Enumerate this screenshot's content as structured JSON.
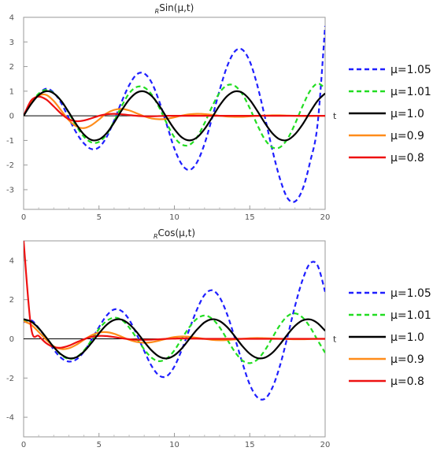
{
  "chart_data": [
    {
      "type": "line",
      "title_sub": "R",
      "title_main": "Sin(μ,t)",
      "xlabel": "t",
      "ylabel": "",
      "xlim": [
        0,
        20
      ],
      "ylim": [
        -3.8,
        4
      ],
      "x_ticks": [
        0,
        5,
        10,
        15,
        20
      ],
      "y_ticks": [
        -3,
        -2,
        -1,
        0,
        1,
        2,
        3,
        4
      ],
      "legend_position": "right",
      "x": [
        0,
        0.5,
        1,
        1.5,
        2,
        2.5,
        3,
        3.5,
        4,
        4.5,
        5,
        5.5,
        6,
        6.5,
        7,
        7.5,
        8,
        8.5,
        9,
        9.5,
        10,
        10.5,
        11,
        11.5,
        12,
        12.5,
        13,
        13.5,
        14,
        14.5,
        15,
        15.5,
        16,
        16.5,
        17,
        17.5,
        18,
        18.5,
        19,
        19.5,
        20
      ],
      "series": [
        {
          "name": "μ=1.05",
          "color": "#1f1fff",
          "dashed": true,
          "values": [
            0,
            0.5,
            0.88,
            1.1,
            0.94,
            0.51,
            -0.1,
            -0.69,
            -1.12,
            -1.35,
            -1.28,
            -0.87,
            -0.2,
            0.57,
            1.24,
            1.68,
            1.72,
            1.34,
            0.58,
            -0.37,
            -1.33,
            -1.98,
            -2.2,
            -1.89,
            -1.14,
            -0.09,
            1.04,
            2.01,
            2.61,
            2.69,
            2.21,
            1.24,
            -0.04,
            -1.39,
            -2.55,
            -3.34,
            -3.48,
            -2.99,
            -1.88,
            -0.33,
            3.65
          ]
        },
        {
          "name": "μ=1.01",
          "color": "#22dd22",
          "dashed": true,
          "values": [
            0,
            0.52,
            0.9,
            1.05,
            0.92,
            0.6,
            0.12,
            -0.42,
            -0.85,
            -1.08,
            -1.06,
            -0.76,
            -0.22,
            0.39,
            0.91,
            1.17,
            1.15,
            0.86,
            0.33,
            -0.31,
            -0.87,
            -1.17,
            -1.18,
            -0.87,
            -0.3,
            0.37,
            0.94,
            1.24,
            1.22,
            0.89,
            0.31,
            -0.37,
            -0.96,
            -1.28,
            -1.28,
            -0.94,
            -0.33,
            0.39,
            1.01,
            1.31,
            1.12
          ]
        },
        {
          "name": "μ=1.0",
          "color": "#000000",
          "dashed": false,
          "values": [
            0,
            0.48,
            0.84,
            1.0,
            0.91,
            0.6,
            0.14,
            -0.35,
            -0.76,
            -0.98,
            -0.96,
            -0.71,
            -0.28,
            0.22,
            0.66,
            0.94,
            0.99,
            0.8,
            0.41,
            -0.08,
            -0.54,
            -0.88,
            -1.0,
            -0.88,
            -0.54,
            -0.07,
            0.42,
            0.8,
            0.99,
            0.94,
            0.65,
            0.2,
            -0.29,
            -0.71,
            -0.96,
            -0.98,
            -0.75,
            -0.35,
            0.15,
            0.61,
            0.91
          ]
        },
        {
          "name": "μ=0.9",
          "color": "#ff8c1a",
          "dashed": false,
          "values": [
            0,
            0.55,
            0.82,
            0.85,
            0.6,
            0.21,
            -0.18,
            -0.43,
            -0.5,
            -0.38,
            -0.15,
            0.1,
            0.24,
            0.28,
            0.22,
            0.1,
            -0.02,
            -0.11,
            -0.14,
            -0.12,
            -0.06,
            0.01,
            0.06,
            0.08,
            0.07,
            0.04,
            0.0,
            -0.03,
            -0.04,
            -0.04,
            -0.02,
            0.0,
            0.01,
            0.02,
            0.02,
            0.01,
            0.0,
            -0.01,
            -0.01,
            0.0,
            0.0
          ]
        },
        {
          "name": "μ=0.8",
          "color": "#ee1111",
          "dashed": false,
          "values": [
            0,
            0.62,
            0.78,
            0.66,
            0.38,
            0.08,
            -0.14,
            -0.22,
            -0.19,
            -0.1,
            0.0,
            0.06,
            0.08,
            0.06,
            0.03,
            0.0,
            -0.02,
            -0.02,
            -0.01,
            0.0,
            0.0,
            0.0,
            0.0,
            0.0,
            0.0,
            0.0,
            0.0,
            0.0,
            0.0,
            0.0,
            0.0,
            0.0,
            0.0,
            0.0,
            0.0,
            0.0,
            0.0,
            0.0,
            0.0,
            0.0,
            0.0
          ]
        }
      ]
    },
    {
      "type": "line",
      "title_sub": "R",
      "title_main": "Cos(μ,t)",
      "xlabel": "t",
      "ylabel": "",
      "xlim": [
        0,
        20
      ],
      "ylim": [
        -5,
        5
      ],
      "x_ticks": [
        0,
        5,
        10,
        15,
        20
      ],
      "y_ticks": [
        -4,
        -2,
        0,
        2,
        4
      ],
      "legend_position": "right",
      "x": [
        0,
        0.5,
        1,
        1.5,
        2,
        2.5,
        3,
        3.5,
        4,
        4.5,
        5,
        5.5,
        6,
        6.5,
        7,
        7.5,
        8,
        8.5,
        9,
        9.5,
        10,
        10.5,
        11,
        11.5,
        12,
        12.5,
        13,
        13.5,
        14,
        14.5,
        15,
        15.5,
        16,
        16.5,
        17,
        17.5,
        18,
        18.5,
        19,
        19.5,
        20
      ],
      "series": [
        {
          "name": "μ=1.05",
          "color": "#1f1fff",
          "dashed": true,
          "values": [
            0.85,
            0.95,
            0.55,
            0.02,
            -0.55,
            -0.98,
            -1.16,
            -1.05,
            -0.66,
            -0.05,
            0.6,
            1.18,
            1.5,
            1.42,
            0.98,
            0.23,
            -0.62,
            -1.4,
            -1.88,
            -1.9,
            -1.41,
            -0.54,
            0.5,
            1.5,
            2.24,
            2.48,
            2.12,
            1.25,
            0.07,
            -1.2,
            -2.33,
            -2.98,
            -3.06,
            -2.49,
            -1.38,
            0.1,
            1.67,
            3.0,
            3.85,
            3.74,
            2.4
          ]
        },
        {
          "name": "μ=1.01",
          "color": "#22dd22",
          "dashed": true,
          "values": [
            0.95,
            0.88,
            0.52,
            0.07,
            -0.42,
            -0.83,
            -1.02,
            -0.93,
            -0.6,
            -0.07,
            0.5,
            0.91,
            1.08,
            0.97,
            0.58,
            0.03,
            -0.54,
            -0.97,
            -1.14,
            -1.0,
            -0.59,
            0.02,
            0.6,
            1.03,
            1.19,
            1.03,
            0.59,
            -0.03,
            -0.65,
            -1.1,
            -1.24,
            -1.06,
            -0.59,
            0.06,
            0.7,
            1.16,
            1.3,
            1.09,
            0.6,
            -0.07,
            -0.71
          ]
        },
        {
          "name": "μ=1.0",
          "color": "#000000",
          "dashed": false,
          "values": [
            1.0,
            0.88,
            0.54,
            0.07,
            -0.42,
            -0.8,
            -0.99,
            -0.94,
            -0.65,
            -0.21,
            0.28,
            0.71,
            0.96,
            0.98,
            0.75,
            0.35,
            -0.15,
            -0.6,
            -0.91,
            -1.0,
            -0.84,
            -0.48,
            0.0,
            0.47,
            0.84,
            1.0,
            0.91,
            0.6,
            0.14,
            -0.36,
            -0.76,
            -0.98,
            -0.96,
            -0.71,
            -0.28,
            0.22,
            0.66,
            0.94,
            0.99,
            0.8,
            0.41
          ]
        },
        {
          "name": "μ=0.9",
          "color": "#ff8c1a",
          "dashed": false,
          "values": [
            0.9,
            0.72,
            0.35,
            -0.05,
            -0.38,
            -0.52,
            -0.48,
            -0.3,
            -0.05,
            0.18,
            0.32,
            0.34,
            0.26,
            0.11,
            -0.05,
            -0.16,
            -0.2,
            -0.17,
            -0.09,
            0.01,
            0.09,
            0.12,
            0.1,
            0.05,
            0.0,
            -0.05,
            -0.07,
            -0.06,
            -0.03,
            0.0,
            0.03,
            0.04,
            0.03,
            0.02,
            0.0,
            -0.01,
            -0.02,
            -0.02,
            -0.01,
            0.0,
            0.0
          ]
        },
        {
          "name": "μ=0.8",
          "color": "#ee1111",
          "dashed": false,
          "values": [
            5.0,
            0.55,
            0.15,
            -0.22,
            -0.42,
            -0.45,
            -0.35,
            -0.18,
            -0.02,
            0.1,
            0.15,
            0.14,
            0.09,
            0.03,
            -0.02,
            -0.05,
            -0.05,
            -0.04,
            -0.02,
            0.0,
            0.01,
            0.02,
            0.01,
            0.01,
            0.0,
            0.0,
            0.0,
            0.0,
            0.0,
            0.0,
            0.0,
            0.0,
            0.0,
            0.0,
            0.0,
            0.0,
            0.0,
            0.0,
            0.0,
            0.0,
            0.0
          ]
        }
      ]
    }
  ]
}
